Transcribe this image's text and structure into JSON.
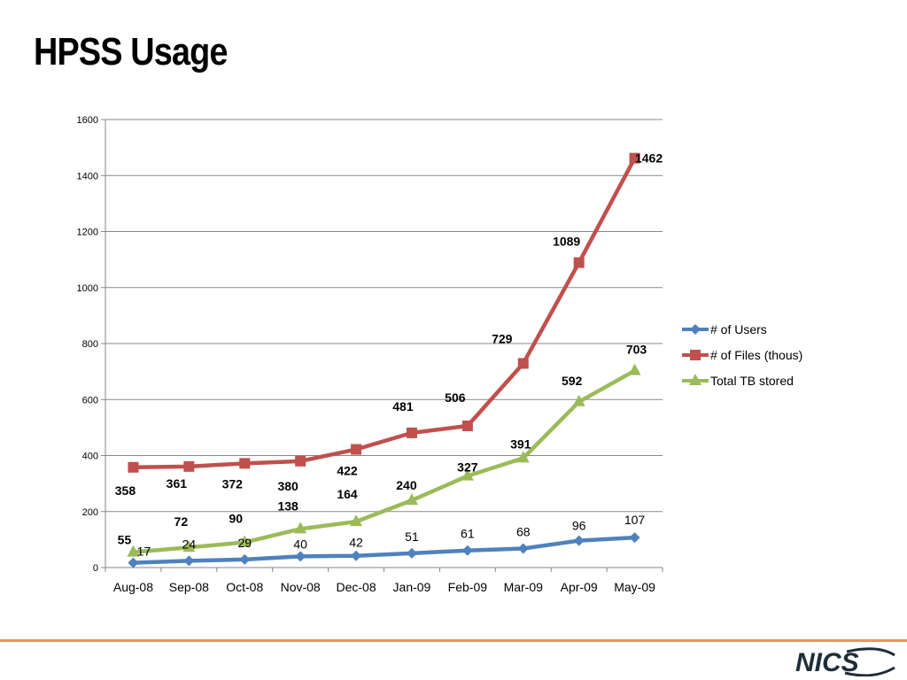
{
  "slide": {
    "title": "HPSS Usage"
  },
  "logo": {
    "text": "NICS"
  },
  "colors": {
    "footer_line": "#f0955a",
    "logo_dark": "#1f2d3a"
  },
  "chart_data": {
    "type": "line",
    "title": "",
    "xlabel": "",
    "ylabel": "",
    "categories": [
      "Aug-08",
      "Sep-08",
      "Oct-08",
      "Nov-08",
      "Dec-08",
      "Jan-09",
      "Feb-09",
      "Mar-09",
      "Apr-09",
      "May-09"
    ],
    "ylim": [
      0,
      1600
    ],
    "yticks": [
      0,
      200,
      400,
      600,
      800,
      1000,
      1200,
      1400,
      1600
    ],
    "grid": true,
    "legend_position": "right",
    "series": [
      {
        "name": "# of Users",
        "color": "#4f81bd",
        "marker": "diamond",
        "label_bold": false,
        "values": [
          17,
          24,
          29,
          40,
          42,
          51,
          61,
          68,
          96,
          107
        ]
      },
      {
        "name": "# of Files (thous)",
        "color": "#c0504d",
        "marker": "square",
        "label_bold": true,
        "values": [
          358,
          361,
          372,
          380,
          422,
          481,
          506,
          729,
          1089,
          1462
        ]
      },
      {
        "name": "Total TB stored",
        "color": "#9bbb59",
        "marker": "triangle",
        "label_bold": true,
        "values": [
          55,
          72,
          90,
          138,
          164,
          240,
          327,
          391,
          592,
          703
        ]
      }
    ]
  }
}
